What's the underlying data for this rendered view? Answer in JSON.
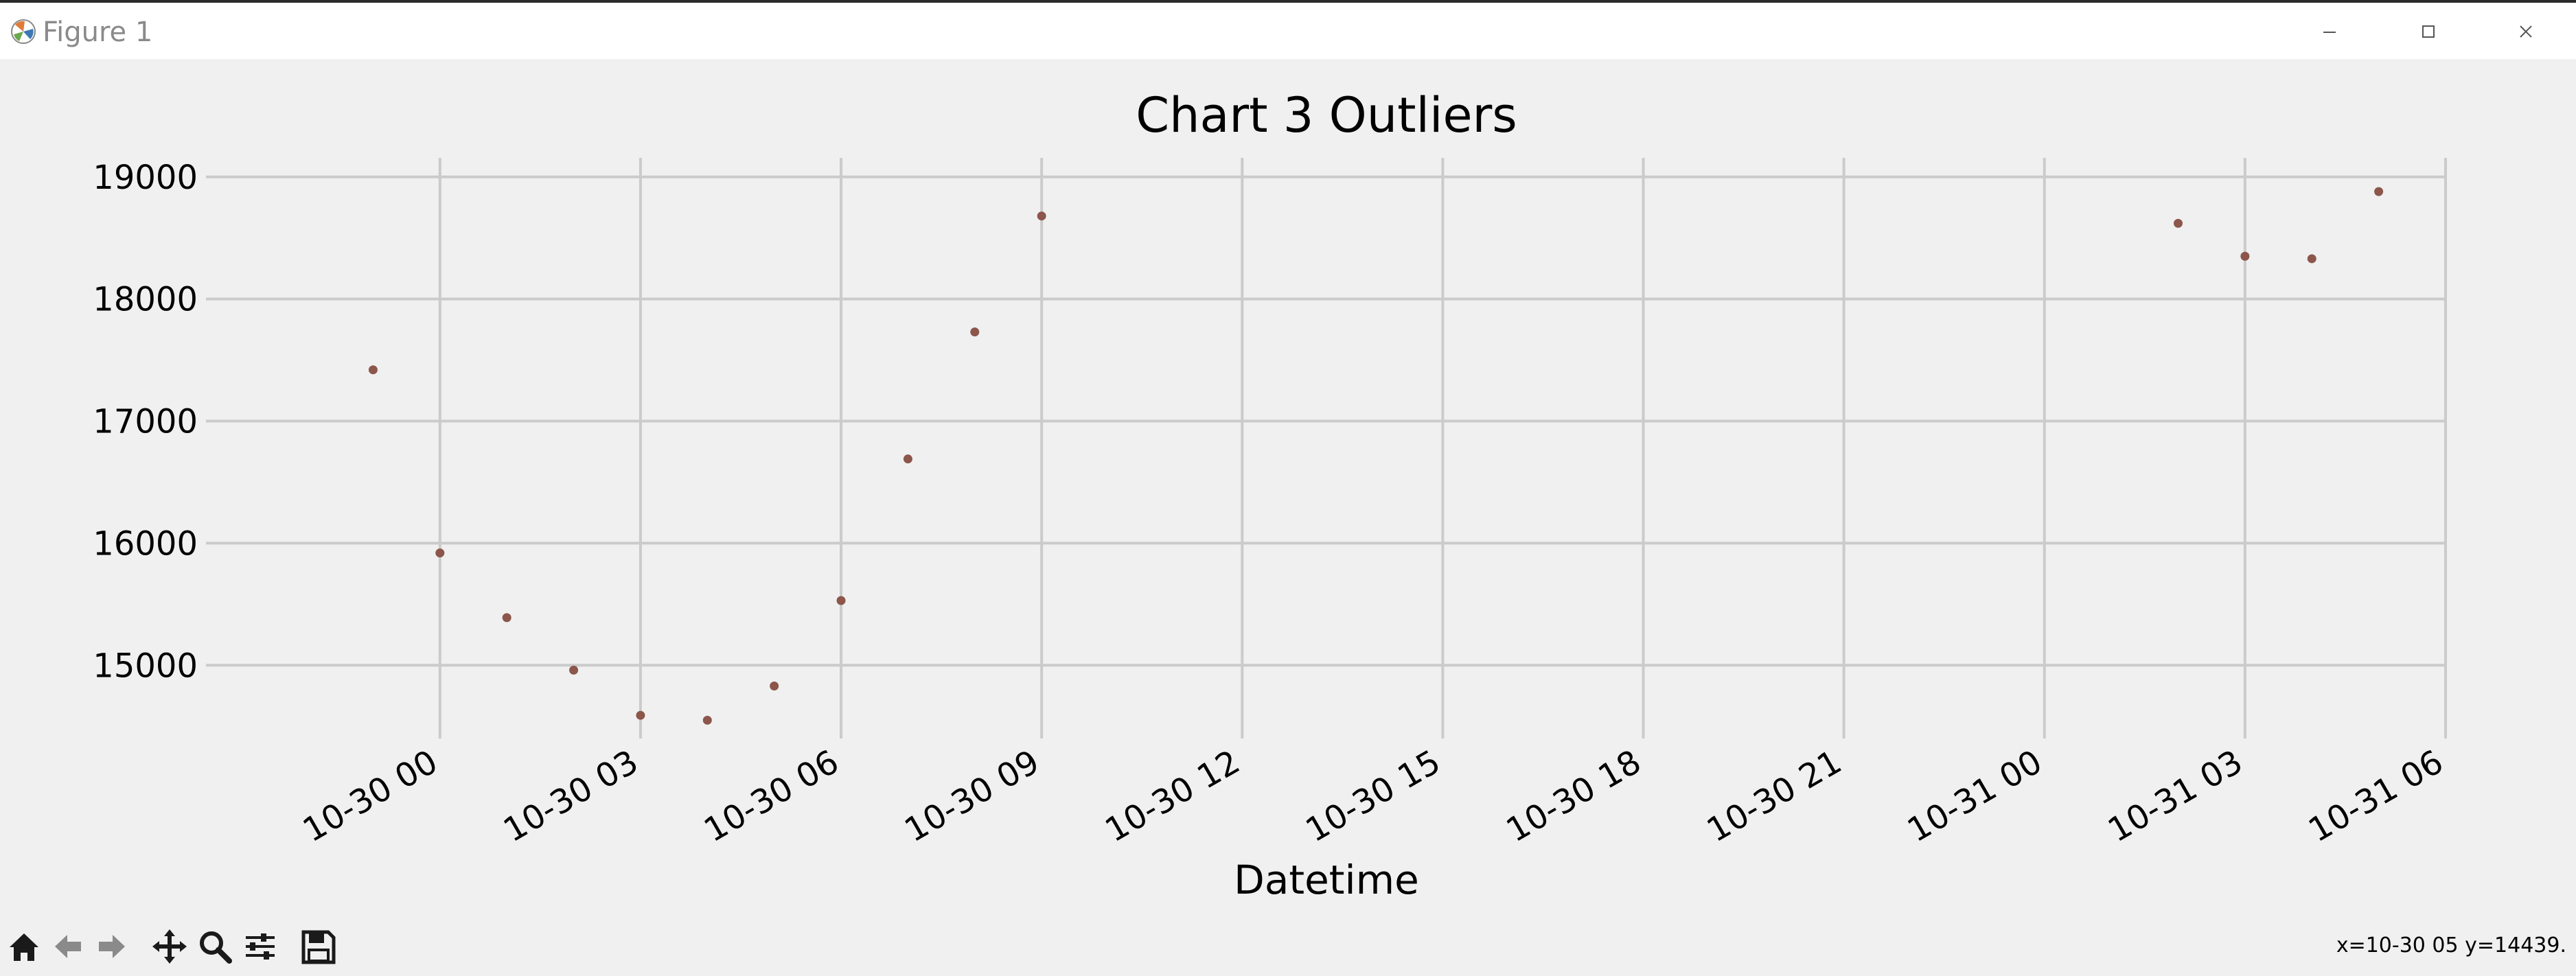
{
  "window": {
    "title": "Figure 1",
    "icon": "matplotlib-logo-icon",
    "controls": [
      "minimize-icon",
      "maximize-icon",
      "close-icon"
    ]
  },
  "toolbar": {
    "tools": [
      "home-icon",
      "back-arrow-icon",
      "forward-arrow-icon",
      "pan-move-icon",
      "zoom-magnifier-icon",
      "configure-subplots-icon",
      "save-floppy-icon"
    ]
  },
  "status": {
    "coordinates": "x=10-30 05 y=14439."
  },
  "chart_data": {
    "type": "scatter",
    "title": "Chart 3 Outliers",
    "xlabel": "Datetime",
    "ylabel": "",
    "x_axis_type": "datetime",
    "xlim": [
      "2023-10-29 20:30",
      "2023-10-31 06:00"
    ],
    "ylim": [
      14400,
      19100
    ],
    "x_ticks": [
      {
        "t": "2023-10-30 00:00",
        "label": "10-30 00"
      },
      {
        "t": "2023-10-30 03:00",
        "label": "10-30 03"
      },
      {
        "t": "2023-10-30 06:00",
        "label": "10-30 06"
      },
      {
        "t": "2023-10-30 09:00",
        "label": "10-30 09"
      },
      {
        "t": "2023-10-30 12:00",
        "label": "10-30 12"
      },
      {
        "t": "2023-10-30 15:00",
        "label": "10-30 15"
      },
      {
        "t": "2023-10-30 18:00",
        "label": "10-30 18"
      },
      {
        "t": "2023-10-30 21:00",
        "label": "10-30 21"
      },
      {
        "t": "2023-10-31 00:00",
        "label": "10-31 00"
      },
      {
        "t": "2023-10-31 03:00",
        "label": "10-31 03"
      },
      {
        "t": "2023-10-31 06:00",
        "label": "10-31 06"
      }
    ],
    "y_ticks": [
      15000,
      16000,
      17000,
      18000,
      19000
    ],
    "grid": true,
    "marker_color": "#8c564b",
    "points": [
      {
        "x": "2023-10-29 23:00",
        "y": 17420
      },
      {
        "x": "2023-10-30 00:00",
        "y": 15920
      },
      {
        "x": "2023-10-30 01:00",
        "y": 15390
      },
      {
        "x": "2023-10-30 02:00",
        "y": 14960
      },
      {
        "x": "2023-10-30 03:00",
        "y": 14590
      },
      {
        "x": "2023-10-30 04:00",
        "y": 14550
      },
      {
        "x": "2023-10-30 05:00",
        "y": 14830
      },
      {
        "x": "2023-10-30 06:00",
        "y": 15530
      },
      {
        "x": "2023-10-30 07:00",
        "y": 16690
      },
      {
        "x": "2023-10-30 08:00",
        "y": 17730
      },
      {
        "x": "2023-10-30 09:00",
        "y": 18680
      },
      {
        "x": "2023-10-31 02:00",
        "y": 18620
      },
      {
        "x": "2023-10-31 03:00",
        "y": 18350
      },
      {
        "x": "2023-10-31 04:00",
        "y": 18330
      },
      {
        "x": "2023-10-31 05:00",
        "y": 18880
      }
    ]
  }
}
